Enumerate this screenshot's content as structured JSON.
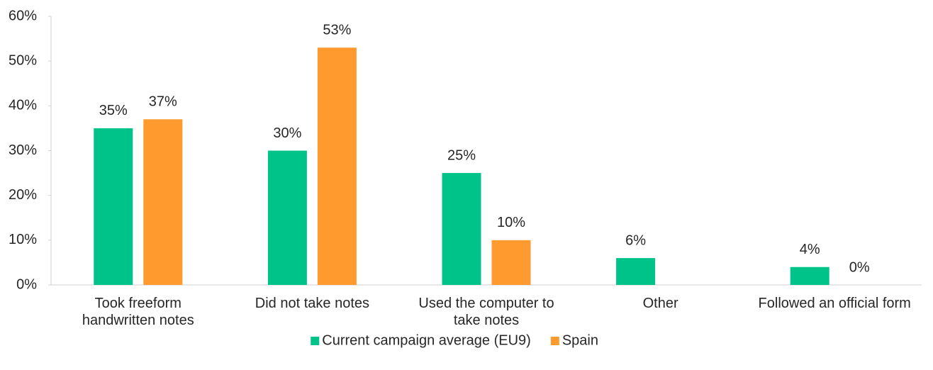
{
  "chart_data": {
    "type": "bar",
    "categories": [
      "Took freeform handwritten notes",
      "Did not take notes",
      "Used the computer to take notes",
      "Other",
      "Followed an official form"
    ],
    "series": [
      {
        "name": "Current campaign average (EU9)",
        "color": "#00c389",
        "values": [
          35,
          30,
          25,
          6,
          4
        ],
        "value_labels": [
          "35%",
          "30%",
          "25%",
          "6%",
          "4%"
        ]
      },
      {
        "name": "Spain",
        "color": "#ff9a2e",
        "values": [
          37,
          53,
          10,
          null,
          0
        ],
        "value_labels": [
          "37%",
          "53%",
          "10%",
          null,
          "0%"
        ]
      }
    ],
    "ylim": [
      0,
      60
    ],
    "yticks": [
      {
        "value": 0,
        "label": "0%"
      },
      {
        "value": 10,
        "label": "10%"
      },
      {
        "value": 20,
        "label": "20%"
      },
      {
        "value": 30,
        "label": "30%"
      },
      {
        "value": 40,
        "label": "40%"
      },
      {
        "value": 50,
        "label": "50%"
      },
      {
        "value": 60,
        "label": "60%"
      }
    ],
    "legend": "bottom"
  }
}
